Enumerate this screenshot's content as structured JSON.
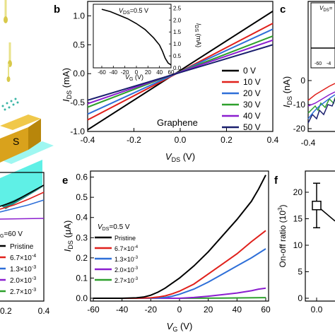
{
  "panel_labels": {
    "b": "b",
    "c": "c",
    "e": "e",
    "f": "f"
  },
  "device_labels": {
    "source": "S"
  },
  "colors": {
    "0V": "#000000",
    "10V": "#e0201b",
    "20V": "#2e6fd8",
    "30V": "#2da02c",
    "40V": "#8b1ecf",
    "50V": "#1a1f6e",
    "device_gold": "#d9a21c",
    "device_cyan": "#5ff0e6",
    "device_teal": "#2fb7a8",
    "tip": "#d8c94a"
  },
  "chart_data": [
    {
      "id": "b",
      "type": "line",
      "xlabel_main": "V",
      "xlabel_sub": "DS",
      "xlabel_unit": " (V)",
      "ylabel_main": "I",
      "ylabel_sub": "DS",
      "ylabel_unit": " (mA)",
      "xlim": [
        -0.4,
        0.4
      ],
      "ylim": [
        -1.0,
        1.25
      ],
      "xticks": [
        "-0.4",
        "-0.2",
        "0.0",
        "0.2",
        "0.4"
      ],
      "yticks": [
        "-1.0",
        "-0.5",
        "0.0",
        "0.5",
        "1.0"
      ],
      "annotation": "Graphene",
      "legend_position": "right",
      "series": [
        {
          "name": "0 V",
          "color": "#000000",
          "x": [
            -0.4,
            0.4
          ],
          "y": [
            -0.97,
            1.08
          ]
        },
        {
          "name": "10 V",
          "color": "#e0201b",
          "x": [
            -0.4,
            0.4
          ],
          "y": [
            -0.8,
            0.87
          ]
        },
        {
          "name": "20 V",
          "color": "#2e6fd8",
          "x": [
            -0.4,
            0.4
          ],
          "y": [
            -0.7,
            0.77
          ]
        },
        {
          "name": "30 V",
          "color": "#2da02c",
          "x": [
            -0.4,
            0.4
          ],
          "y": [
            -0.58,
            0.65
          ]
        },
        {
          "name": "40 V",
          "color": "#8b1ecf",
          "x": [
            -0.4,
            0.4
          ],
          "y": [
            -0.52,
            0.58
          ]
        },
        {
          "name": "50 V",
          "color": "#1a1f6e",
          "x": [
            -0.4,
            0.4
          ],
          "y": [
            -0.46,
            0.5
          ]
        }
      ],
      "inset": {
        "label": "V",
        "label_sub": "DS",
        "label_rest": "=0.5 V",
        "xlabel_main": "V",
        "xlabel_sub": "G",
        "xlabel_unit": " (V)",
        "ylabel_main": "I",
        "ylabel_sub": "DS",
        "ylabel_unit": " (mA)",
        "xticks": [
          "-60",
          "-40",
          "-20",
          "0",
          "20",
          "40",
          "60"
        ],
        "yticks": [
          "0.0",
          "0.5",
          "1.0",
          "1.5",
          "2.0",
          "2.5"
        ],
        "xlim": [
          -60,
          60
        ],
        "ylim": [
          0,
          2.6
        ],
        "x": [
          -60,
          -45,
          -30,
          -15,
          0,
          15,
          30,
          40,
          45,
          50,
          55,
          60
        ],
        "y": [
          2.45,
          2.35,
          2.2,
          2.05,
          1.85,
          1.6,
          1.25,
          0.95,
          0.7,
          0.4,
          0.2,
          0.12
        ]
      }
    },
    {
      "id": "c",
      "type": "line",
      "xlabel_tick": "-0.4",
      "ylabel_main": "I",
      "ylabel_sub": "DS",
      "ylabel_unit": " (nA)",
      "yticks": [
        "0",
        "-10",
        "-20"
      ],
      "inset_label": "V",
      "inset_label_sub": "DS",
      "inset_label_rest": "=",
      "inset_xticks": [
        "-60",
        "-4"
      ]
    },
    {
      "id": "d",
      "type": "line",
      "legend_title_main": "V",
      "legend_title_sub": "G",
      "legend_title_rest": "=60 V",
      "xticks": [
        "0.2",
        "0.4"
      ],
      "series": [
        {
          "name": "Pristine",
          "color": "#000000"
        },
        {
          "name": "6.7×10",
          "sup": "-4",
          "color": "#e0201b"
        },
        {
          "name": "1.3×10",
          "sup": "-3",
          "color": "#2e6fd8"
        },
        {
          "name": "2.0×10",
          "sup": "-3",
          "color": "#8b1ecf"
        },
        {
          "name": "2.7×10",
          "sup": "-3",
          "color": "#2da02c"
        }
      ]
    },
    {
      "id": "e",
      "type": "line",
      "xlabel_main": "V",
      "xlabel_sub": "G",
      "xlabel_unit": " (V)",
      "ylabel_main": "I",
      "ylabel_sub": "DS",
      "ylabel_unit": " (μA)",
      "xlim": [
        -60,
        60
      ],
      "ylim": [
        0,
        0.63
      ],
      "xticks": [
        "-60",
        "-40",
        "-20",
        "0",
        "20",
        "40",
        "60"
      ],
      "yticks": [
        "0.0",
        "0.1",
        "0.2",
        "0.3",
        "0.4",
        "0.5",
        "0.6"
      ],
      "annotation_main": "V",
      "annotation_sub": "DS",
      "annotation_rest": "=0.5 V",
      "legend_position": "left",
      "series": [
        {
          "name": "Pristine",
          "sup": "",
          "color": "#000000",
          "x": [
            -60,
            -40,
            -30,
            -25,
            -20,
            -15,
            -10,
            -5,
            0,
            5,
            10,
            20,
            30,
            40,
            50,
            55,
            60
          ],
          "y": [
            0,
            0,
            0.002,
            0.006,
            0.015,
            0.03,
            0.05,
            0.075,
            0.1,
            0.13,
            0.16,
            0.23,
            0.31,
            0.39,
            0.48,
            0.54,
            0.61
          ]
        },
        {
          "name": "6.7×10",
          "sup": "-4",
          "color": "#e0201b",
          "x": [
            -60,
            -30,
            -20,
            -15,
            -10,
            -5,
            0,
            10,
            20,
            30,
            40,
            50,
            60
          ],
          "y": [
            0,
            0,
            0.002,
            0.006,
            0.012,
            0.022,
            0.035,
            0.07,
            0.12,
            0.17,
            0.22,
            0.28,
            0.335
          ]
        },
        {
          "name": "1.3×10",
          "sup": "-3",
          "color": "#2e6fd8",
          "x": [
            -60,
            -20,
            -10,
            -5,
            0,
            10,
            20,
            30,
            40,
            50,
            60
          ],
          "y": [
            0,
            0,
            0.004,
            0.01,
            0.02,
            0.045,
            0.08,
            0.12,
            0.16,
            0.2,
            0.245
          ]
        },
        {
          "name": "2.0×10",
          "sup": "-3",
          "color": "#8b1ecf",
          "x": [
            -60,
            0,
            10,
            20,
            30,
            40,
            50,
            55,
            60
          ],
          "y": [
            0,
            0,
            0.004,
            0.01,
            0.018,
            0.026,
            0.037,
            0.045,
            0.05
          ]
        },
        {
          "name": "2.7×10",
          "sup": "-3",
          "color": "#2da02c",
          "x": [
            -60,
            0,
            30,
            60
          ],
          "y": [
            0,
            0,
            0.001,
            0.003
          ]
        }
      ]
    },
    {
      "id": "f",
      "type": "scatter",
      "ylabel": "On-off ratio (10",
      "ylabel_sup": "3",
      "ylabel_end": ")",
      "yticks": [
        "0",
        "5",
        "10",
        "15",
        "20"
      ],
      "ylim": [
        0,
        24
      ],
      "xticks": [
        "0.0"
      ],
      "points": [
        {
          "x": 0.0,
          "y": 17.5,
          "err": 4.2
        }
      ]
    }
  ]
}
